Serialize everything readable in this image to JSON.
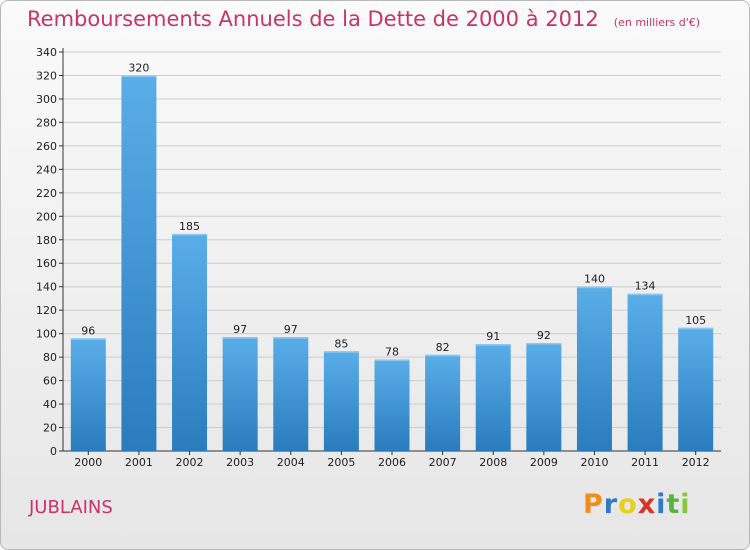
{
  "chart_data": {
    "type": "bar",
    "title": "Remboursements Annuels de la Dette de 2000 à 2012",
    "subtitle": "(en milliers d'€)",
    "xlabel": "",
    "ylabel": "",
    "categories": [
      "2000",
      "2001",
      "2002",
      "2003",
      "2004",
      "2005",
      "2006",
      "2007",
      "2008",
      "2009",
      "2010",
      "2011",
      "2012"
    ],
    "values": [
      96,
      320,
      185,
      97,
      97,
      85,
      78,
      82,
      91,
      92,
      140,
      134,
      105
    ],
    "ylim": [
      0,
      340
    ],
    "yticks": [
      0,
      20,
      40,
      60,
      80,
      100,
      120,
      140,
      160,
      180,
      200,
      220,
      240,
      260,
      280,
      300,
      320,
      340
    ],
    "grid": true,
    "legend": "none",
    "bar_color": "#3d93d6",
    "bar_color_light": "#5aaee8",
    "bar_color_dark": "#2a7cbd",
    "grid_color": "#cccccc"
  },
  "footer": {
    "commune": "JUBLAINS",
    "logo_letters": [
      {
        "ch": "P",
        "color": "#f28c1c"
      },
      {
        "ch": "r",
        "color": "#2f79c8"
      },
      {
        "ch": "o",
        "color": "#e8cf1a"
      },
      {
        "ch": "x",
        "color": "#d8332a"
      },
      {
        "ch": "i",
        "color": "#2f79c8"
      },
      {
        "ch": "t",
        "color": "#58b43a"
      },
      {
        "ch": "i",
        "color": "#8bc53f"
      }
    ]
  },
  "colors": {
    "title": "#c8336a",
    "axis_text": "#222222"
  }
}
